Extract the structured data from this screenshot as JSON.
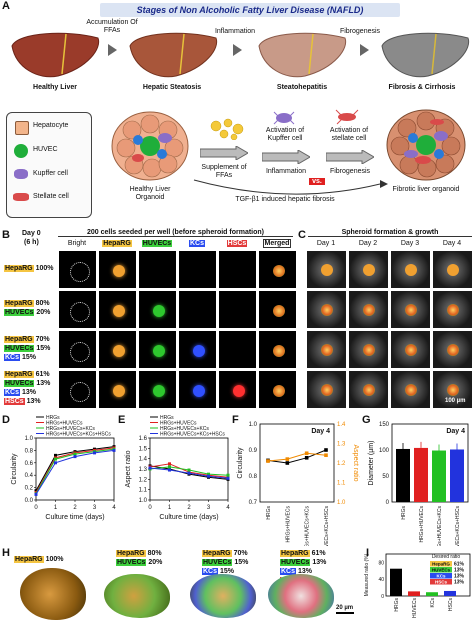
{
  "panelA": {
    "letter": "A",
    "title": "Stages of Non Alcoholic Fatty Liver Disease (NAFLD)",
    "stages": [
      "Healthy Liver",
      "Hepatic Steatosis",
      "Steatohepatitis",
      "Fibrosis & Cirrhosis"
    ],
    "transitions": [
      "Accumulation Of FFAs",
      "Inflammation",
      "Fibrogenesis"
    ],
    "legend": [
      "Hepatocyte",
      "HUVEC",
      "Kupffer cell",
      "Stellate cell"
    ],
    "healthy_organoid": "Healthy Liver Organoid",
    "supplement": "Supplement of FFAs",
    "kupffer_activation": "Activation of Kupffer cell",
    "stellate_activation": "Activation of stellate cell",
    "inflammation": "Inflammation",
    "vs": "vs.",
    "fibrogenesis": "Fibrogenesis",
    "tgf": "TGF-β1 induced hepatic fibrosis",
    "fibrotic_organoid": "Fibrotic liver organoid"
  },
  "panelB": {
    "letter": "B",
    "day": "Day 0",
    "hours": "(6 h)",
    "header": "200 cells seeded per well (before spheroid formation)",
    "columns": [
      "Bright",
      "HepaRG",
      "HUVECs",
      "KCs",
      "HSCs",
      "Merged"
    ],
    "rows": [
      [
        {
          "t": "HepaRG",
          "v": "100%",
          "c": "#f5c542"
        }
      ],
      [
        {
          "t": "HepaRG",
          "v": "80%",
          "c": "#f5c542"
        },
        {
          "t": "HUVECs",
          "v": "20%",
          "c": "#3ccf3c"
        }
      ],
      [
        {
          "t": "HepaRG",
          "v": "70%",
          "c": "#f5c542"
        },
        {
          "t": "HUVECs",
          "v": "15%",
          "c": "#3ccf3c"
        },
        {
          "t": "KCs",
          "v": "15%",
          "c": "#2a4cf0"
        }
      ],
      [
        {
          "t": "HepaRG",
          "v": "61%",
          "c": "#f5c542"
        },
        {
          "t": "HUVECs",
          "v": "13%",
          "c": "#3ccf3c"
        },
        {
          "t": "KCs",
          "v": "13%",
          "c": "#2a4cf0"
        },
        {
          "t": "HSCs",
          "v": "13%",
          "c": "#e23a3a"
        }
      ]
    ]
  },
  "panelC": {
    "letter": "C",
    "header": "Spheroid formation & growth",
    "columns": [
      "Day 1",
      "Day 2",
      "Day 3",
      "Day 4"
    ],
    "scale": "100 µm"
  },
  "panelD": {
    "letter": "D",
    "chart_data": {
      "type": "line",
      "ylabel": "Circularity",
      "xlabel": "Culture time (days)",
      "x": [
        0,
        1,
        2,
        3,
        4
      ],
      "xlim": [
        0,
        4
      ],
      "ylim": [
        0,
        1.0
      ],
      "yticks": [
        0,
        0.2,
        0.4,
        0.6,
        0.8,
        1.0
      ],
      "series": [
        {
          "name": "HRGs",
          "color": "#000000",
          "values": [
            0.15,
            0.72,
            0.78,
            0.82,
            0.86
          ]
        },
        {
          "name": "HRGs+HUVECs",
          "color": "#e02020",
          "values": [
            0.12,
            0.68,
            0.76,
            0.8,
            0.84
          ]
        },
        {
          "name": "HRGs+HUVECs+KCs",
          "color": "#22c022",
          "values": [
            0.1,
            0.66,
            0.74,
            0.78,
            0.82
          ]
        },
        {
          "name": "HRGs+HUVECs+KCs+HSCs",
          "color": "#2233dd",
          "values": [
            0.09,
            0.6,
            0.7,
            0.76,
            0.8
          ]
        }
      ]
    }
  },
  "panelE": {
    "letter": "E",
    "chart_data": {
      "type": "line",
      "ylabel": "Aspect ratio",
      "xlabel": "Culture time (days)",
      "x": [
        0,
        1,
        2,
        3,
        4
      ],
      "xlim": [
        0,
        4
      ],
      "ylim": [
        1.0,
        1.6
      ],
      "yticks": [
        1.0,
        1.1,
        1.2,
        1.3,
        1.4,
        1.5,
        1.6
      ],
      "series": [
        {
          "name": "HRGs",
          "color": "#000000",
          "values": [
            1.33,
            1.3,
            1.25,
            1.22,
            1.2
          ]
        },
        {
          "name": "HRGs+HUVECs",
          "color": "#e02020",
          "values": [
            1.32,
            1.35,
            1.27,
            1.24,
            1.22
          ]
        },
        {
          "name": "HRGs+HUVECs+KCs",
          "color": "#22c022",
          "values": [
            1.3,
            1.32,
            1.29,
            1.25,
            1.24
          ]
        },
        {
          "name": "HRGs+HUVECs+KCs+HSCs",
          "color": "#2233dd",
          "values": [
            1.31,
            1.29,
            1.26,
            1.23,
            1.21
          ]
        }
      ]
    }
  },
  "panelF": {
    "letter": "F",
    "chart_data": {
      "type": "line",
      "title": "Day 4",
      "ylabel": "Circularity",
      "ylabel2": "Aspect ratio",
      "categories": [
        "HRGs",
        "HRGs+HUVECs",
        "HRGs+HUVECs+KCs",
        "HRGs+HUVECs+KCs+HSCs"
      ],
      "ylim": [
        0.7,
        1.0
      ],
      "yticks": [
        0.7,
        0.8,
        0.9,
        1.0
      ],
      "ylim2": [
        1.0,
        1.4
      ],
      "yticks2": [
        1.0,
        1.1,
        1.2,
        1.3,
        1.4
      ],
      "series": [
        {
          "name": "Circularity",
          "color": "#000000",
          "values": [
            0.86,
            0.85,
            0.87,
            0.9
          ]
        },
        {
          "name": "Aspect ratio",
          "color": "#f08a00",
          "values": [
            1.21,
            1.22,
            1.25,
            1.24
          ]
        }
      ]
    }
  },
  "panelG": {
    "letter": "G",
    "chart_data": {
      "type": "bar",
      "title": "Day 4",
      "ylabel": "Diameter (µm)",
      "categories": [
        "HRGs",
        "HRGs+HUVECs",
        "HRGs+HUVECs+KCs",
        "HRGs+HUVECs+KCs+HSCs"
      ],
      "colors": [
        "#000000",
        "#e02020",
        "#22c022",
        "#2233dd"
      ],
      "values": [
        102,
        104,
        99,
        101
      ],
      "ylim": [
        0,
        150
      ],
      "yticks": [
        0,
        50,
        100,
        150
      ]
    }
  },
  "panelH": {
    "letter": "H",
    "images": [
      [
        {
          "t": "HepaRG",
          "v": "100%",
          "c": "#f5c542"
        }
      ],
      [
        {
          "t": "HepaRG",
          "v": "80%",
          "c": "#f5c542"
        },
        {
          "t": "HUVECs",
          "v": "20%",
          "c": "#3ccf3c"
        }
      ],
      [
        {
          "t": "HepaRG",
          "v": "70%",
          "c": "#f5c542"
        },
        {
          "t": "HUVECs",
          "v": "15%",
          "c": "#3ccf3c"
        },
        {
          "t": "KCs",
          "v": "15%",
          "c": "#2a4cf0"
        }
      ],
      [
        {
          "t": "HepaRG",
          "v": "61%",
          "c": "#f5c542"
        },
        {
          "t": "HUVECs",
          "v": "13%",
          "c": "#3ccf3c"
        },
        {
          "t": "KCs",
          "v": "13%",
          "c": "#2a4cf0"
        },
        {
          "t": "HSCs",
          "v": "13%",
          "c": "#e23a3a"
        }
      ]
    ],
    "scale": "20 µm"
  },
  "panelI": {
    "letter": "I",
    "chart_data": {
      "type": "bar",
      "ylabel": "Measured ratio (%)",
      "categories": [
        "HRGs",
        "HUVECs",
        "KCs",
        "HSCs"
      ],
      "colors": [
        "#000000",
        "#e02020",
        "#22c022",
        "#2233dd"
      ],
      "values": [
        65,
        11,
        9,
        12
      ],
      "ylim": [
        0,
        100
      ],
      "yticks": [
        0,
        20,
        40,
        60,
        80,
        100
      ],
      "legend_title": "Desired ratio",
      "legend": [
        {
          "t": "HepaRG",
          "v": "61%",
          "c": "#f5c542"
        },
        {
          "t": "HUVECs",
          "v": "13%",
          "c": "#3ccf3c"
        },
        {
          "t": "KCs",
          "v": "13%",
          "c": "#2a4cf0"
        },
        {
          "t": "HSCs",
          "v": "13%",
          "c": "#e23a3a"
        }
      ]
    }
  }
}
